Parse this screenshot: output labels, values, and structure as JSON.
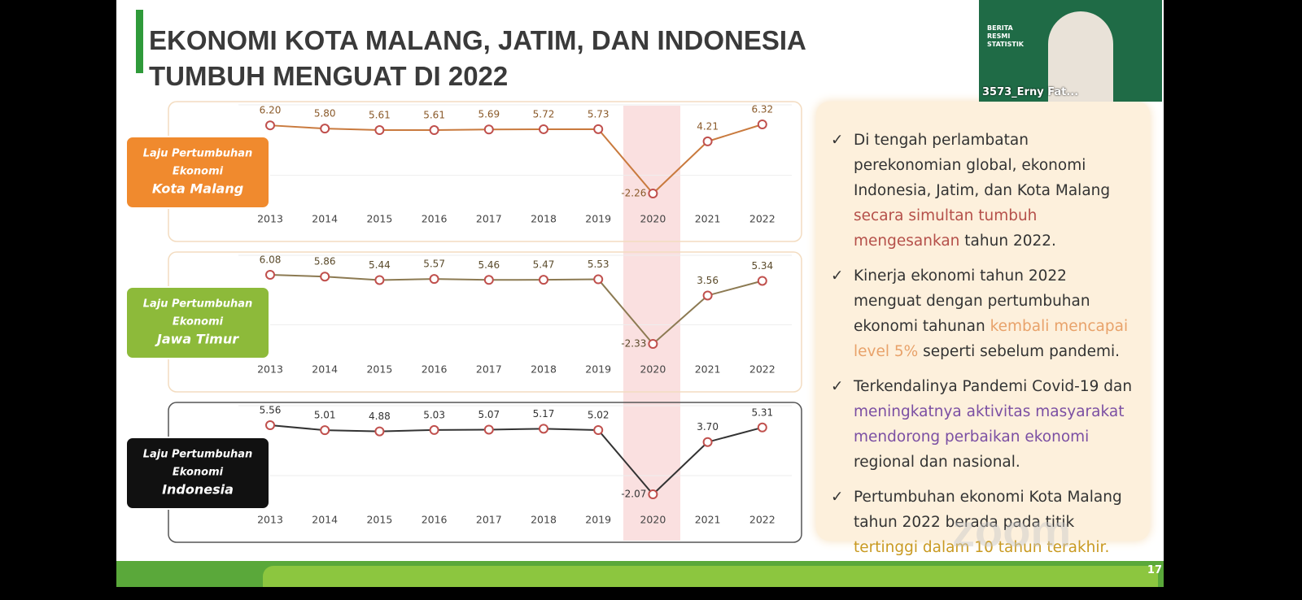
{
  "slide": {
    "title_lines": [
      "EKONOMI KOTA MALANG, JATIM, DAN INDONESIA",
      "TUMBUH MENGUAT DI 2022"
    ],
    "page_number": "17"
  },
  "chart_data": [
    {
      "type": "line",
      "label_lines": [
        "Laju Pertumbuhan",
        "Ekonomi",
        "Kota Malang"
      ],
      "categories": [
        "2013",
        "2014",
        "2015",
        "2016",
        "2017",
        "2018",
        "2019",
        "2020",
        "2021",
        "2022"
      ],
      "values": [
        6.2,
        5.8,
        5.61,
        5.61,
        5.69,
        5.72,
        5.73,
        -2.26,
        4.21,
        6.32
      ],
      "value_labels": [
        "6.20",
        "5.80",
        "5.61",
        "5.61",
        "5.69",
        "5.72",
        "5.73",
        "-2.26",
        "4.21",
        "6.32"
      ],
      "color": "#c97a3e",
      "label_color": "#8a5a2a",
      "box_color": "#f08a2e"
    },
    {
      "type": "line",
      "label_lines": [
        "Laju Pertumbuhan",
        "Ekonomi",
        "Jawa Timur"
      ],
      "categories": [
        "2013",
        "2014",
        "2015",
        "2016",
        "2017",
        "2018",
        "2019",
        "2020",
        "2021",
        "2022"
      ],
      "values": [
        6.08,
        5.86,
        5.44,
        5.57,
        5.46,
        5.47,
        5.53,
        -2.33,
        3.56,
        5.34
      ],
      "value_labels": [
        "6.08",
        "5.86",
        "5.44",
        "5.57",
        "5.46",
        "5.47",
        "5.53",
        "-2.33",
        "3.56",
        "5.34"
      ],
      "color": "#8c7a52",
      "label_color": "#5a4a2a",
      "box_color": "#8dba3a"
    },
    {
      "type": "line",
      "label_lines": [
        "Laju Pertumbuhan",
        "Ekonomi",
        "Indonesia"
      ],
      "categories": [
        "2013",
        "2014",
        "2015",
        "2016",
        "2017",
        "2018",
        "2019",
        "2020",
        "2021",
        "2022"
      ],
      "values": [
        5.56,
        5.01,
        4.88,
        5.03,
        5.07,
        5.17,
        5.02,
        -2.07,
        3.7,
        5.31
      ],
      "value_labels": [
        "5.56",
        "5.01",
        "4.88",
        "5.03",
        "5.07",
        "5.17",
        "5.02",
        "-2.07",
        "3.70",
        "5.31"
      ],
      "color": "#333333",
      "label_color": "#333333",
      "box_color": "#111111"
    }
  ],
  "bullets": [
    {
      "before": "Di tengah perlambatan perekonomian global, ekonomi Indonesia, Jatim, dan Kota Malang",
      "highlight": "secara simultan tumbuh mengesankan",
      "after": "tahun 2022.",
      "highlight_color": "#b5504a"
    },
    {
      "before": "Kinerja ekonomi tahun 2022 menguat dengan pertumbuhan ekonomi tahunan",
      "highlight": "kembali mencapai level 5%",
      "after": "seperti sebelum pandemi.",
      "highlight_color": "#e8a26a"
    },
    {
      "before": "Terkendalinya Pandemi Covid-19 dan",
      "highlight": "meningkatnya aktivitas masyarakat mendorong perbaikan ekonomi",
      "after": "regional dan nasional.",
      "highlight_color": "#7b4fa3"
    },
    {
      "before": "Pertumbuhan ekonomi Kota Malang tahun 2022 berada pada titik",
      "highlight": "tertinggi dalam 10 tahun terakhir.",
      "highlight_color": "#c99a22"
    }
  ],
  "video": {
    "slide_text": "BERITA RESMI STATISTIK",
    "name": "3573_Erny Fat..."
  },
  "watermark": "zoom"
}
